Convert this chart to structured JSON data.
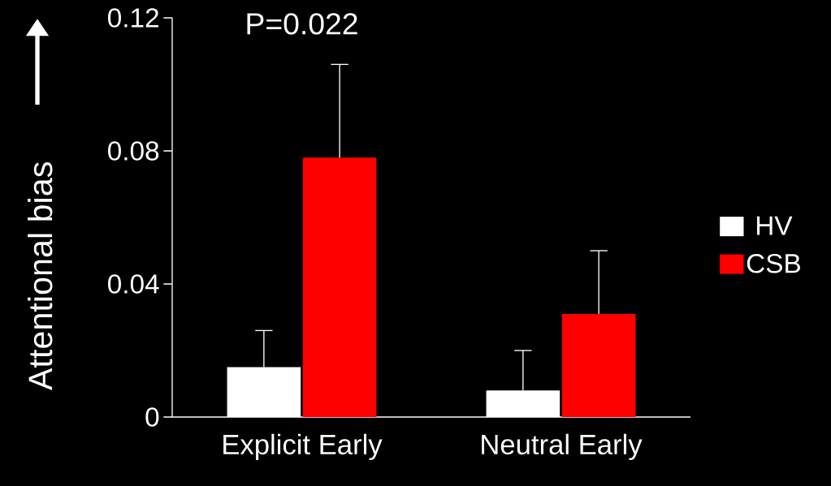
{
  "chart_data": {
    "type": "bar",
    "ylabel": "Attentional bias",
    "categories": [
      "Explicit Early",
      "Neutral Early"
    ],
    "series": [
      {
        "name": "HV",
        "color": "#ffffff",
        "values": [
          0.015,
          0.008
        ],
        "errors": [
          [
            0.015,
            0.026
          ],
          [
            0.008,
            0.02
          ]
        ]
      },
      {
        "name": "CSB",
        "color": "#ff0000",
        "values": [
          0.078,
          0.031
        ],
        "errors": [
          [
            0.078,
            0.106
          ],
          [
            0.031,
            0.05
          ]
        ]
      }
    ],
    "ylim": [
      0,
      0.12
    ],
    "yticks": [
      0,
      0.04,
      0.08,
      0.12
    ],
    "legend": "right",
    "grid": false,
    "annotations": [
      "P=0.022"
    ]
  }
}
